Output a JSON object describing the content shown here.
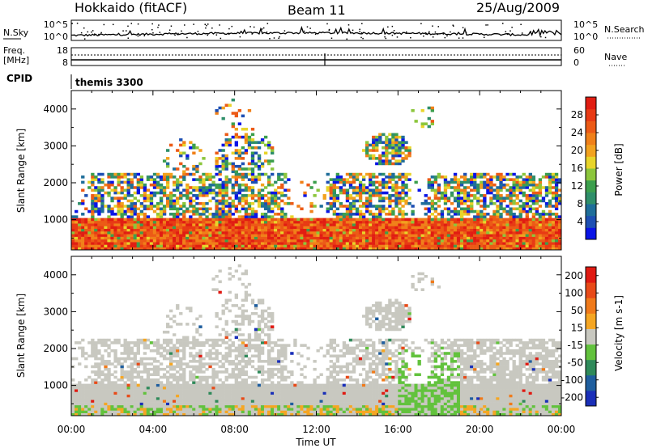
{
  "header": {
    "radar": "Hokkaido (fitACF)",
    "beam": "Beam 11",
    "date": "25/Aug/2009"
  },
  "top_panel": {
    "left_label": "N.Sky",
    "right_label": "N.Search",
    "left_ticks": [
      "10^5",
      "10^0"
    ],
    "right_ticks": [
      "10^5",
      "10^0"
    ]
  },
  "freq_panel": {
    "left_label_1": "Freq.",
    "left_label_2": "[MHz]",
    "right_label": "Nave",
    "left_ticks": [
      "18",
      "8"
    ],
    "right_ticks": [
      "60",
      "0"
    ]
  },
  "cpid": {
    "label": "CPID",
    "value": "themis 3300"
  },
  "x_axis": {
    "label": "Time UT",
    "ticks": [
      "00:00",
      "04:00",
      "08:00",
      "12:00",
      "16:00",
      "20:00",
      "00:00"
    ]
  },
  "chart_data": [
    {
      "type": "heatmap",
      "name": "power",
      "ylabel": "Slant Range [km]",
      "yticks": [
        1000,
        2000,
        3000,
        4000
      ],
      "ylim": [
        180,
        4500
      ],
      "xlim": [
        0,
        24
      ],
      "colorbar": {
        "label": "Power [dB]",
        "ticks": [
          "4",
          "8",
          "12",
          "16",
          "20",
          "24",
          "28"
        ],
        "colors": [
          "#0a14e6",
          "#1d4fb3",
          "#1f6e9a",
          "#2f8f6a",
          "#3c9f4d",
          "#8cc63c",
          "#e8d42a",
          "#f2a21f",
          "#f08019",
          "#ec5a16",
          "#e83a14",
          "#e11d12"
        ]
      }
    },
    {
      "type": "heatmap",
      "name": "velocity",
      "ylabel": "Slant Range [km]",
      "yticks": [
        1000,
        2000,
        3000,
        4000
      ],
      "ylim": [
        180,
        4500
      ],
      "xlim": [
        0,
        24
      ],
      "colorbar": {
        "label": "Velocity [m s-1]",
        "ticks": [
          "200",
          "100",
          "50",
          "15",
          "-15",
          "-50",
          "-100",
          "-200"
        ],
        "colors": [
          "#1a2fb8",
          "#1f5e9e",
          "#2f8a5a",
          "#62c23d",
          "#c8c8c0",
          "#f5a623",
          "#f07a1a",
          "#e84a18",
          "#e01a12"
        ]
      }
    }
  ]
}
